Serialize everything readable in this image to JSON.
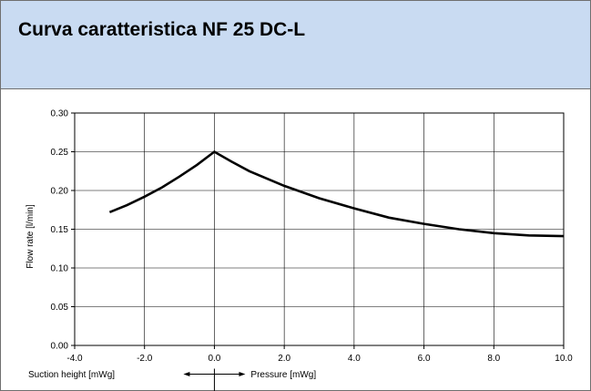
{
  "header": {
    "title": "Curva caratteristica NF 25 DC-L",
    "background": "#c9dbf2"
  },
  "chart_data": {
    "type": "line",
    "title": "",
    "ylabel": "Flow rate [l/min]",
    "xlabel_left": "Suction height [mWg]",
    "xlabel_right": "Pressure [mWg]",
    "xlim": [
      -4.0,
      10.0
    ],
    "ylim": [
      0.0,
      0.3
    ],
    "xticks": [
      "-4.0",
      "-2.0",
      "0.0",
      "2.0",
      "4.0",
      "6.0",
      "8.0",
      "10.0"
    ],
    "yticks": [
      "0.00",
      "0.05",
      "0.10",
      "0.15",
      "0.20",
      "0.25",
      "0.30"
    ],
    "grid": true,
    "series": [
      {
        "color": "#000000",
        "x": [
          -3.0,
          -2.5,
          -2.0,
          -1.5,
          -1.0,
          -0.5,
          0.0,
          0.5,
          1.0,
          2.0,
          3.0,
          4.0,
          5.0,
          6.0,
          7.0,
          8.0,
          9.0,
          10.0
        ],
        "y": [
          0.172,
          0.181,
          0.192,
          0.204,
          0.218,
          0.233,
          0.25,
          0.237,
          0.225,
          0.206,
          0.19,
          0.177,
          0.165,
          0.157,
          0.15,
          0.145,
          0.142,
          0.141
        ]
      }
    ]
  }
}
